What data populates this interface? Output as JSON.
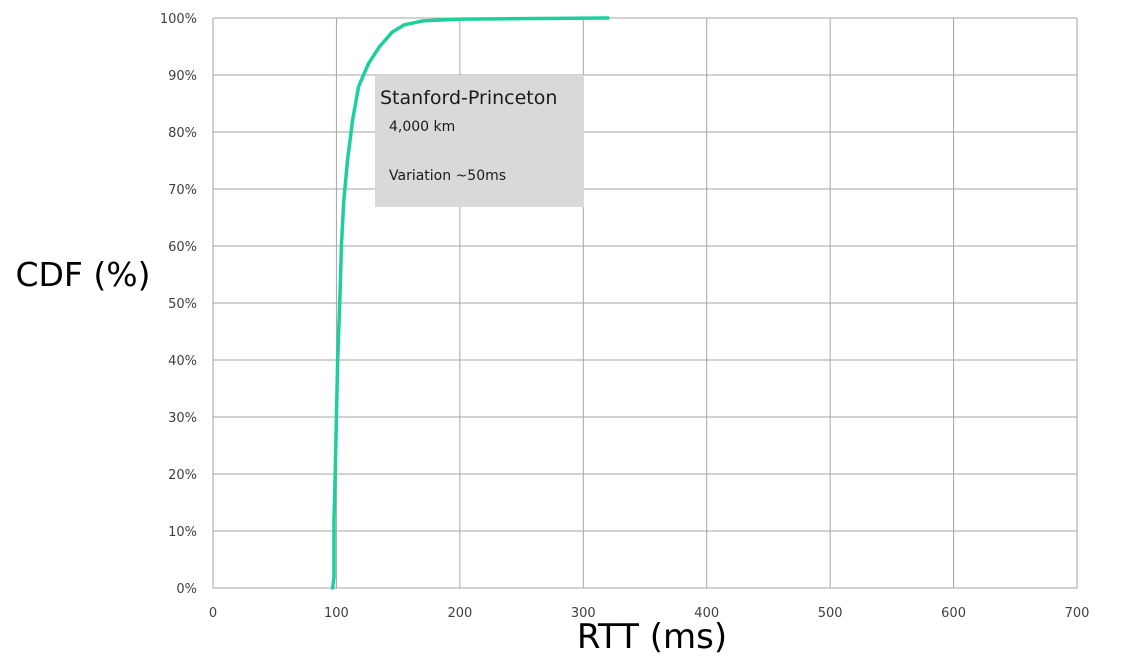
{
  "chart_data": {
    "type": "line",
    "title": "",
    "xlabel": "RTT (ms)",
    "ylabel": "CDF (%)",
    "xlim": [
      0,
      700
    ],
    "ylim": [
      0,
      100
    ],
    "x_ticks": [
      "0",
      "100",
      "200",
      "300",
      "400",
      "500",
      "600",
      "700"
    ],
    "y_ticks": [
      "0%",
      "10%",
      "20%",
      "30%",
      "40%",
      "50%",
      "60%",
      "70%",
      "80%",
      "90%",
      "100%"
    ],
    "grid": true,
    "series": [
      {
        "color": "#1ccf9c",
        "points": [
          [
            97,
            0
          ],
          [
            98,
            2
          ],
          [
            98,
            12
          ],
          [
            99,
            20
          ],
          [
            100,
            30
          ],
          [
            101,
            40
          ],
          [
            102,
            46
          ],
          [
            103,
            52
          ],
          [
            104,
            60
          ],
          [
            106,
            68
          ],
          [
            109,
            75
          ],
          [
            113,
            82
          ],
          [
            118,
            88
          ],
          [
            126,
            92
          ],
          [
            135,
            95
          ],
          [
            145,
            97.5
          ],
          [
            155,
            98.8
          ],
          [
            170,
            99.5
          ],
          [
            200,
            99.8
          ],
          [
            250,
            99.9
          ],
          [
            320,
            100
          ]
        ]
      }
    ],
    "annotation": {
      "title": "Stanford-Princeton",
      "lines": [
        "4,000 km",
        "Variation ~50ms"
      ],
      "background": "#d9d9d9"
    }
  }
}
